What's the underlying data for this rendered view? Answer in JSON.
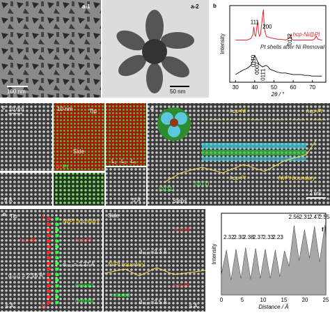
{
  "panels": {
    "a1": {
      "label": "a-1",
      "scale": "100 nm"
    },
    "a2": {
      "label": "a-2",
      "scale": "50 nm"
    },
    "c": {
      "label": "c",
      "scale_left": "10 nm",
      "scale_mid": "10 nm",
      "tip": "Tip",
      "side": "Side",
      "ni": "Ni",
      "pt": "Pt",
      "l1": "L₁",
      "l2": "L₂",
      "l3": "L₃",
      "scale_bottom": "5 Å",
      "scale_right": "5 Å"
    },
    "d": {
      "label": "d",
      "hcp_ni": "hcp-Ni",
      "hcp_pt_top": "hcp-Pt",
      "hcp_pt_bottom": "hcp-Pt",
      "boundary": "Ni/Pt boundary",
      "steps": "Steps",
      "facet_left": "(01̄11)",
      "facet_right": "(011̄1)",
      "scale": "2 nm"
    },
    "e": {
      "label": "e",
      "tip": "Tip",
      "tip_boundary": "Ni/Pt boundary",
      "tip_ni": "hcp-Ni",
      "tip_pt": "hcp-Pt",
      "d0002": "d₀₀₀₂ = 2.16 Å",
      "d0111": "d₀₁̄₁₁= 2.27 Å",
      "relaxed_1": "relaxed",
      "relaxed_2": "relaxed",
      "row_first": "1",
      "row_last": "15",
      "scale_left": "5 Å",
      "side": "Side",
      "side_ni": "hcp-Ni",
      "side_d_ni": "d₀₁̄₁₀=2.3 Å",
      "side_boundary": "Ni/Pt boundary",
      "side_pt": "hcp-Pt",
      "side_relaxed": "relaxed",
      "side_d_pt": "d₀₁̄₁₀=2.5 Å",
      "scale_right": "5 Å"
    },
    "f": {
      "ni": "Ni",
      "pt": "Pt"
    }
  },
  "chart_data": [
    {
      "type": "line",
      "panel_label": "b",
      "y_label": "Intensity",
      "x_label": "2θ / °",
      "xlim": [
        27,
        77
      ],
      "xticks": [
        30,
        40,
        50,
        60,
        70
      ],
      "ylim": [
        0,
        100
      ],
      "series": [
        {
          "name": "hcp-Ni@Pt",
          "color": "#e3262b",
          "x": [
            30,
            32,
            34,
            36,
            37,
            38,
            39,
            39.5,
            40,
            40.5,
            41,
            41.5,
            42,
            42.5,
            43,
            44,
            44.5,
            45,
            46,
            48,
            50,
            52,
            54,
            56,
            57,
            58,
            58.5,
            59,
            60,
            62,
            64,
            66,
            68,
            70,
            71,
            72,
            73,
            75
          ],
          "values": [
            55,
            55,
            55,
            55,
            56,
            57,
            62,
            72,
            62,
            60,
            70,
            80,
            65,
            60,
            62,
            85,
            95,
            70,
            60,
            58,
            57,
            56,
            56,
            55,
            56,
            58,
            62,
            57,
            55,
            55,
            55,
            55,
            55,
            55,
            56,
            60,
            56,
            55
          ]
        },
        {
          "name": "Pt shells after Ni Removal",
          "color": "#222222",
          "x": [
            30,
            32,
            34,
            36,
            38,
            39,
            40,
            41,
            42,
            44,
            46,
            47,
            48,
            50,
            52,
            54,
            56,
            58,
            60,
            62,
            64,
            66,
            68,
            70,
            72,
            75
          ],
          "values": [
            10,
            13,
            16,
            18,
            22,
            28,
            35,
            30,
            24,
            20,
            22,
            20,
            17,
            15,
            13,
            12,
            12,
            11,
            10,
            10,
            10,
            9,
            9,
            8,
            8,
            8
          ]
        }
      ],
      "annotations": [
        "011̄0",
        "0002",
        "011̄1",
        "011̄2",
        "111",
        "200"
      ]
    },
    {
      "type": "area",
      "panel_label": "f",
      "y_label": "Intensity",
      "x_label": "Distance / Å",
      "xlim": [
        0,
        25
      ],
      "xticks": [
        0,
        5,
        10,
        15,
        20,
        25
      ],
      "ylim": [
        0,
        100
      ],
      "color": "#a8a8a8",
      "x": [
        0,
        1.2,
        2.3,
        3.5,
        4.7,
        5.8,
        7,
        8.2,
        9.3,
        10.5,
        11.7,
        12.9,
        14,
        15.1,
        16.2,
        17.4,
        18.6,
        19.9,
        21.1,
        22.3,
        23.5,
        24.8,
        25
      ],
      "values": [
        25,
        55,
        18,
        56,
        20,
        58,
        19,
        57,
        20,
        56,
        20,
        55,
        22,
        54,
        35,
        85,
        42,
        80,
        45,
        84,
        40,
        86,
        70
      ],
      "annotations": [
        "2.32",
        "2.30",
        "2.38",
        "2.37",
        "2.33",
        "2.23",
        "2.56",
        "2.31",
        "2.47",
        "2.55"
      ]
    }
  ]
}
